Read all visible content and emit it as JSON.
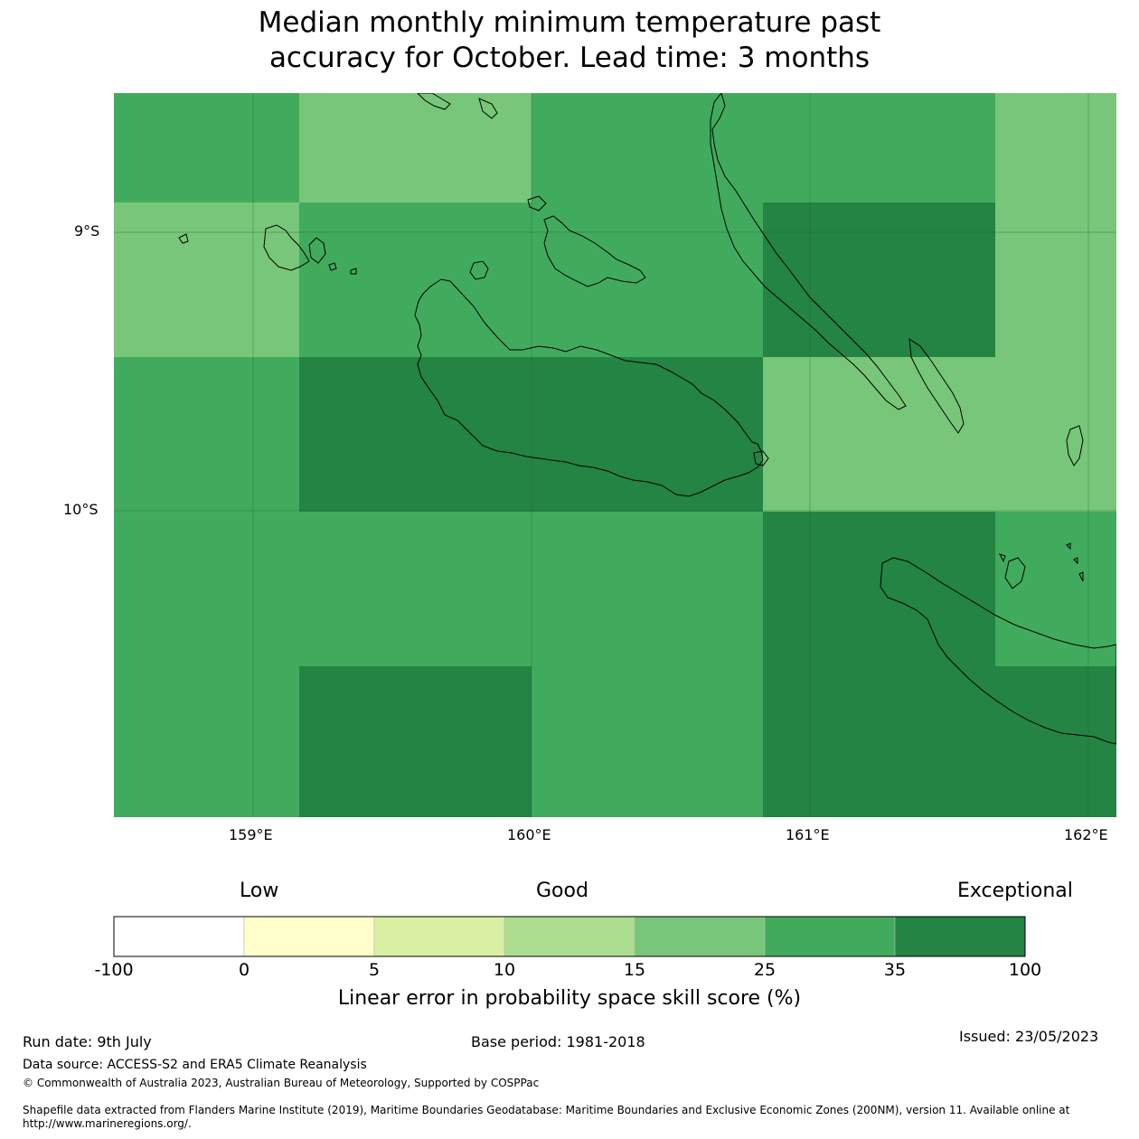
{
  "title_line1": "Median monthly minimum temperature past",
  "title_line2": "accuracy for October. Lead time: 3 months",
  "map": {
    "lat_labels": [
      "9°S",
      "10°S"
    ],
    "lon_labels": [
      "159°E",
      "160°E",
      "161°E",
      "162°E"
    ],
    "lon_range": [
      158.5,
      162.1
    ],
    "lat_range": [
      -8.49,
      -11.09
    ],
    "cell_colors": {
      "c15": "#78c679",
      "c25": "#41ab5d",
      "c35": "#238443"
    },
    "grid": "on"
  },
  "colorbar": {
    "category_labels": [
      "Low",
      "Good",
      "Exceptional"
    ],
    "ticks": [
      "-100",
      "0",
      "5",
      "10",
      "15",
      "25",
      "35",
      "100"
    ],
    "colors": [
      "#ffffff",
      "#ffffcc",
      "#d9f0a3",
      "#addd8e",
      "#78c679",
      "#41ab5d",
      "#238443"
    ],
    "label": "Linear error in probability space skill score (%)"
  },
  "footer": {
    "run_date": "Run date: 9th July",
    "base_period": "Base period: 1981-2018",
    "issued": "Issued: 23/05/2023",
    "data_source": "Data source: ACCESS-S2 and ERA5 Climate Reanalysis",
    "copyright": "© Commonwealth of Australia 2023, Australian Bureau of Meteorology, Supported by COSPPac",
    "shapefile_line1": "Shapefile data extracted from Flanders Marine Institute (2019), Maritime Boundaries Geodatabase: Maritime Boundaries and Exclusive Economic Zones (200NM), version 11. Available online at",
    "shapefile_line2": "http://www.marineregions.org/."
  }
}
